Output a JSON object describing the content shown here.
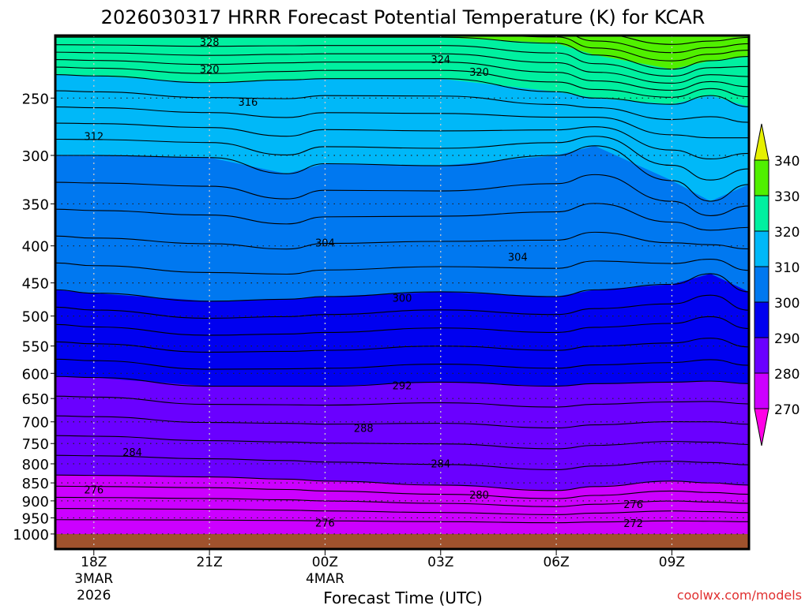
{
  "chart_data": {
    "type": "contour",
    "title": "2026030317 HRRR Forecast Potential Temperature (K) for KCAR",
    "xlabel": "Forecast Time (UTC)",
    "ylabel": "",
    "watermark": "coolwx.com/models",
    "x_unit": "hours after 18Z 3MAR2026",
    "xlim": [
      -1,
      17
    ],
    "ylim_hpa": [
      1049,
      205
    ],
    "x_ticks": [
      {
        "hour": 0,
        "label": "18Z",
        "sub1": "3MAR",
        "sub2": "2026"
      },
      {
        "hour": 3,
        "label": "21Z"
      },
      {
        "hour": 6,
        "label": "00Z",
        "sub1": "4MAR"
      },
      {
        "hour": 9,
        "label": "03Z"
      },
      {
        "hour": 12,
        "label": "06Z"
      },
      {
        "hour": 15,
        "label": "09Z"
      }
    ],
    "y_ticks": [
      "250",
      "300",
      "350",
      "400",
      "450",
      "500",
      "550",
      "600",
      "650",
      "700",
      "750",
      "800",
      "850",
      "900",
      "950",
      "1000"
    ],
    "ground_below_hpa": 1000,
    "ground_color": "#a0522d",
    "band_colors": {
      "below270": "#ff00e6",
      "270": "#cc00ff",
      "280": "#6a00ff",
      "290": "#0000f0",
      "300": "#0078f0",
      "310": "#00b8f8",
      "320": "#00f0a0",
      "330": "#50f000",
      "above340": "#e6f000"
    },
    "colorbar": {
      "levels": [
        "270",
        "280",
        "290",
        "300",
        "310",
        "320",
        "330",
        "340"
      ]
    },
    "boundary_hours": [
      -1,
      0,
      3,
      5,
      6,
      9,
      12,
      13,
      15,
      16,
      17
    ],
    "boundaries": [
      {
        "theta": 280,
        "p": [
          829,
          830,
          834,
          840,
          845,
          856,
          871,
          860,
          845,
          850,
          856
        ]
      },
      {
        "theta": 290,
        "p": [
          606,
          608,
          625,
          625,
          625,
          617,
          625,
          620,
          617,
          615,
          620
        ]
      },
      {
        "theta": 300,
        "p": [
          460,
          465,
          477,
          474,
          470,
          463,
          470,
          460,
          452,
          437,
          463
        ]
      },
      {
        "theta": 310,
        "p": [
          300,
          300,
          302,
          318,
          308,
          310,
          300,
          291,
          325,
          347,
          329
        ]
      },
      {
        "theta": 320,
        "p": [
          232,
          233,
          238,
          236,
          235,
          235,
          245,
          250,
          255,
          248,
          257
        ]
      },
      {
        "theta": 330,
        "p": [
          206,
          206,
          206,
          206,
          206,
          206,
          210,
          218,
          228,
          222,
          219
        ]
      },
      {
        "theta": 340,
        "p": [
          190,
          190,
          190,
          190,
          190,
          190,
          190,
          195,
          200,
          200,
          198
        ]
      }
    ],
    "contour_labels": [
      {
        "text": "328",
        "hour": 3,
        "p": 209
      },
      {
        "text": "324",
        "hour": 9,
        "p": 221
      },
      {
        "text": "320",
        "hour": 3,
        "p": 228
      },
      {
        "text": "320",
        "hour": 10,
        "p": 230
      },
      {
        "text": "316",
        "hour": 4,
        "p": 253
      },
      {
        "text": "312",
        "hour": 0,
        "p": 282
      },
      {
        "text": "304",
        "hour": 6,
        "p": 396
      },
      {
        "text": "304",
        "hour": 11,
        "p": 414
      },
      {
        "text": "300",
        "hour": 8,
        "p": 472
      },
      {
        "text": "292",
        "hour": 8,
        "p": 623
      },
      {
        "text": "288",
        "hour": 7,
        "p": 714
      },
      {
        "text": "284",
        "hour": 1,
        "p": 771
      },
      {
        "text": "284",
        "hour": 9,
        "p": 799
      },
      {
        "text": "280",
        "hour": 10,
        "p": 882
      },
      {
        "text": "276",
        "hour": 0,
        "p": 868
      },
      {
        "text": "276",
        "hour": 6,
        "p": 964
      },
      {
        "text": "276",
        "hour": 14,
        "p": 909
      },
      {
        "text": "272",
        "hour": 14,
        "p": 966
      }
    ]
  }
}
